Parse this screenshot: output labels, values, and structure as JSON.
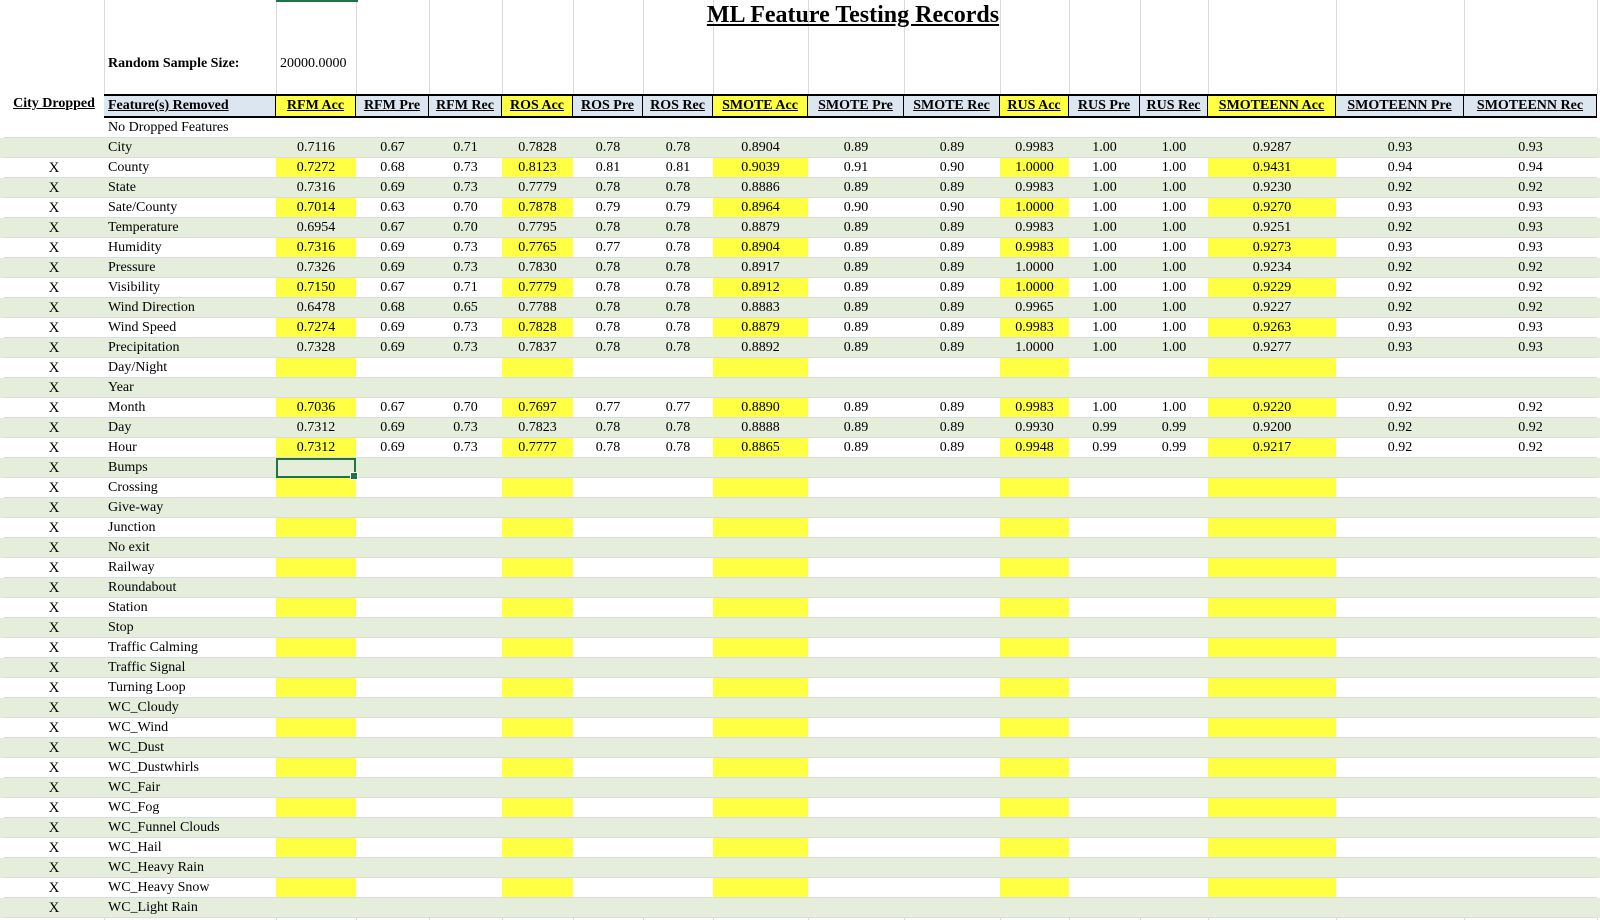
{
  "title": "ML Feature Testing Records",
  "sample": {
    "label": "Random Sample Size:",
    "value": "20000.0000"
  },
  "headers": [
    "City Dropped",
    "Feature(s) Removed",
    "RFM Acc",
    "RFM Pre",
    "RFM Rec",
    "ROS Acc",
    "ROS Pre",
    "ROS Rec",
    "SMOTE Acc",
    "SMOTE Pre",
    "SMOTE Rec",
    "RUS Acc",
    "RUS Pre",
    "RUS Rec",
    "SMOTEENN Acc",
    "SMOTEENN Pre",
    "SMOTEENN Rec"
  ],
  "colors": {
    "yellow": "#ffff43",
    "green_band": "#e4eedb",
    "header_blue": "#dce6f1",
    "selection": "#217346"
  },
  "rows": [
    [
      "",
      "No Dropped Features",
      "",
      "",
      "",
      "",
      "",
      "",
      "",
      "",
      "",
      "",
      "",
      "",
      "",
      "",
      ""
    ],
    [
      "",
      "City",
      "0.7116",
      "0.67",
      "0.71",
      "0.7828",
      "0.78",
      "0.78",
      "0.8904",
      "0.89",
      "0.89",
      "0.9983",
      "1.00",
      "1.00",
      "0.9287",
      "0.93",
      "0.93"
    ],
    [
      "X",
      "County",
      "0.7272",
      "0.68",
      "0.73",
      "0.8123",
      "0.81",
      "0.81",
      "0.9039",
      "0.91",
      "0.90",
      "1.0000",
      "1.00",
      "1.00",
      "0.9431",
      "0.94",
      "0.94"
    ],
    [
      "X",
      "State",
      "0.7316",
      "0.69",
      "0.73",
      "0.7779",
      "0.78",
      "0.78",
      "0.8886",
      "0.89",
      "0.89",
      "0.9983",
      "1.00",
      "1.00",
      "0.9230",
      "0.92",
      "0.92"
    ],
    [
      "X",
      "Sate/County",
      "0.7014",
      "0.63",
      "0.70",
      "0.7878",
      "0.79",
      "0.79",
      "0.8964",
      "0.90",
      "0.90",
      "1.0000",
      "1.00",
      "1.00",
      "0.9270",
      "0.93",
      "0.93"
    ],
    [
      "X",
      "Temperature",
      "0.6954",
      "0.67",
      "0.70",
      "0.7795",
      "0.78",
      "0.78",
      "0.8879",
      "0.89",
      "0.89",
      "0.9983",
      "1.00",
      "1.00",
      "0.9251",
      "0.92",
      "0.93"
    ],
    [
      "X",
      "Humidity",
      "0.7316",
      "0.69",
      "0.73",
      "0.7765",
      "0.77",
      "0.78",
      "0.8904",
      "0.89",
      "0.89",
      "0.9983",
      "1.00",
      "1.00",
      "0.9273",
      "0.93",
      "0.93"
    ],
    [
      "X",
      "Pressure",
      "0.7326",
      "0.69",
      "0.73",
      "0.7830",
      "0.78",
      "0.78",
      "0.8917",
      "0.89",
      "0.89",
      "1.0000",
      "1.00",
      "1.00",
      "0.9234",
      "0.92",
      "0.92"
    ],
    [
      "X",
      "Visibility",
      "0.7150",
      "0.67",
      "0.71",
      "0.7779",
      "0.78",
      "0.78",
      "0.8912",
      "0.89",
      "0.89",
      "1.0000",
      "1.00",
      "1.00",
      "0.9229",
      "0.92",
      "0.92"
    ],
    [
      "X",
      "Wind Direction",
      "0.6478",
      "0.68",
      "0.65",
      "0.7788",
      "0.78",
      "0.78",
      "0.8883",
      "0.89",
      "0.89",
      "0.9965",
      "1.00",
      "1.00",
      "0.9227",
      "0.92",
      "0.92"
    ],
    [
      "X",
      "Wind Speed",
      "0.7274",
      "0.69",
      "0.73",
      "0.7828",
      "0.78",
      "0.78",
      "0.8879",
      "0.89",
      "0.89",
      "0.9983",
      "1.00",
      "1.00",
      "0.9263",
      "0.93",
      "0.93"
    ],
    [
      "X",
      "Precipitation",
      "0.7328",
      "0.69",
      "0.73",
      "0.7837",
      "0.78",
      "0.78",
      "0.8892",
      "0.89",
      "0.89",
      "1.0000",
      "1.00",
      "1.00",
      "0.9277",
      "0.93",
      "0.93"
    ],
    [
      "X",
      "Day/Night",
      "",
      "",
      "",
      "",
      "",
      "",
      "",
      "",
      "",
      "",
      "",
      "",
      "",
      "",
      ""
    ],
    [
      "X",
      "Year",
      "",
      "",
      "",
      "",
      "",
      "",
      "",
      "",
      "",
      "",
      "",
      "",
      "",
      "",
      ""
    ],
    [
      "X",
      "Month",
      "0.7036",
      "0.67",
      "0.70",
      "0.7697",
      "0.77",
      "0.77",
      "0.8890",
      "0.89",
      "0.89",
      "0.9983",
      "1.00",
      "1.00",
      "0.9220",
      "0.92",
      "0.92"
    ],
    [
      "X",
      "Day",
      "0.7312",
      "0.69",
      "0.73",
      "0.7823",
      "0.78",
      "0.78",
      "0.8888",
      "0.89",
      "0.89",
      "0.9930",
      "0.99",
      "0.99",
      "0.9200",
      "0.92",
      "0.92"
    ],
    [
      "X",
      "Hour",
      "0.7312",
      "0.69",
      "0.73",
      "0.7777",
      "0.78",
      "0.78",
      "0.8865",
      "0.89",
      "0.89",
      "0.9948",
      "0.99",
      "0.99",
      "0.9217",
      "0.92",
      "0.92"
    ],
    [
      "X",
      "Bumps",
      "",
      "",
      "",
      "",
      "",
      "",
      "",
      "",
      "",
      "",
      "",
      "",
      "",
      "",
      ""
    ],
    [
      "X",
      "Crossing",
      "",
      "",
      "",
      "",
      "",
      "",
      "",
      "",
      "",
      "",
      "",
      "",
      "",
      "",
      ""
    ],
    [
      "X",
      "Give-way",
      "",
      "",
      "",
      "",
      "",
      "",
      "",
      "",
      "",
      "",
      "",
      "",
      "",
      "",
      ""
    ],
    [
      "X",
      "Junction",
      "",
      "",
      "",
      "",
      "",
      "",
      "",
      "",
      "",
      "",
      "",
      "",
      "",
      "",
      ""
    ],
    [
      "X",
      "No exit",
      "",
      "",
      "",
      "",
      "",
      "",
      "",
      "",
      "",
      "",
      "",
      "",
      "",
      "",
      ""
    ],
    [
      "X",
      "Railway",
      "",
      "",
      "",
      "",
      "",
      "",
      "",
      "",
      "",
      "",
      "",
      "",
      "",
      "",
      ""
    ],
    [
      "X",
      "Roundabout",
      "",
      "",
      "",
      "",
      "",
      "",
      "",
      "",
      "",
      "",
      "",
      "",
      "",
      "",
      ""
    ],
    [
      "X",
      "Station",
      "",
      "",
      "",
      "",
      "",
      "",
      "",
      "",
      "",
      "",
      "",
      "",
      "",
      "",
      ""
    ],
    [
      "X",
      "Stop",
      "",
      "",
      "",
      "",
      "",
      "",
      "",
      "",
      "",
      "",
      "",
      "",
      "",
      "",
      ""
    ],
    [
      "X",
      "Traffic Calming",
      "",
      "",
      "",
      "",
      "",
      "",
      "",
      "",
      "",
      "",
      "",
      "",
      "",
      "",
      ""
    ],
    [
      "X",
      "Traffic Signal",
      "",
      "",
      "",
      "",
      "",
      "",
      "",
      "",
      "",
      "",
      "",
      "",
      "",
      "",
      ""
    ],
    [
      "X",
      "Turning Loop",
      "",
      "",
      "",
      "",
      "",
      "",
      "",
      "",
      "",
      "",
      "",
      "",
      "",
      "",
      ""
    ],
    [
      "X",
      "WC_Cloudy",
      "",
      "",
      "",
      "",
      "",
      "",
      "",
      "",
      "",
      "",
      "",
      "",
      "",
      "",
      ""
    ],
    [
      "X",
      "WC_Wind",
      "",
      "",
      "",
      "",
      "",
      "",
      "",
      "",
      "",
      "",
      "",
      "",
      "",
      "",
      ""
    ],
    [
      "X",
      "WC_Dust",
      "",
      "",
      "",
      "",
      "",
      "",
      "",
      "",
      "",
      "",
      "",
      "",
      "",
      "",
      ""
    ],
    [
      "X",
      "WC_Dustwhirls",
      "",
      "",
      "",
      "",
      "",
      "",
      "",
      "",
      "",
      "",
      "",
      "",
      "",
      "",
      ""
    ],
    [
      "X",
      "WC_Fair",
      "",
      "",
      "",
      "",
      "",
      "",
      "",
      "",
      "",
      "",
      "",
      "",
      "",
      "",
      ""
    ],
    [
      "X",
      "WC_Fog",
      "",
      "",
      "",
      "",
      "",
      "",
      "",
      "",
      "",
      "",
      "",
      "",
      "",
      "",
      ""
    ],
    [
      "X",
      "WC_Funnel Clouds",
      "",
      "",
      "",
      "",
      "",
      "",
      "",
      "",
      "",
      "",
      "",
      "",
      "",
      "",
      ""
    ],
    [
      "X",
      "WC_Hail",
      "",
      "",
      "",
      "",
      "",
      "",
      "",
      "",
      "",
      "",
      "",
      "",
      "",
      "",
      ""
    ],
    [
      "X",
      "WC_Heavy Rain",
      "",
      "",
      "",
      "",
      "",
      "",
      "",
      "",
      "",
      "",
      "",
      "",
      "",
      "",
      ""
    ],
    [
      "X",
      "WC_Heavy Snow",
      "",
      "",
      "",
      "",
      "",
      "",
      "",
      "",
      "",
      "",
      "",
      "",
      "",
      "",
      ""
    ],
    [
      "X",
      "WC_Light Rain",
      "",
      "",
      "",
      "",
      "",
      "",
      "",
      "",
      "",
      "",
      "",
      "",
      "",
      "",
      ""
    ]
  ]
}
